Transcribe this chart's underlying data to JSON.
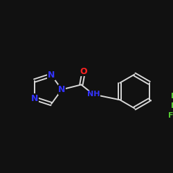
{
  "background_color": "#111111",
  "bond_color": "#d8d8d8",
  "atom_colors": {
    "N": "#3333ff",
    "O": "#ff2222",
    "F": "#55cc33",
    "C": "#d8d8d8"
  },
  "figsize": [
    2.5,
    2.5
  ],
  "dpi": 100
}
